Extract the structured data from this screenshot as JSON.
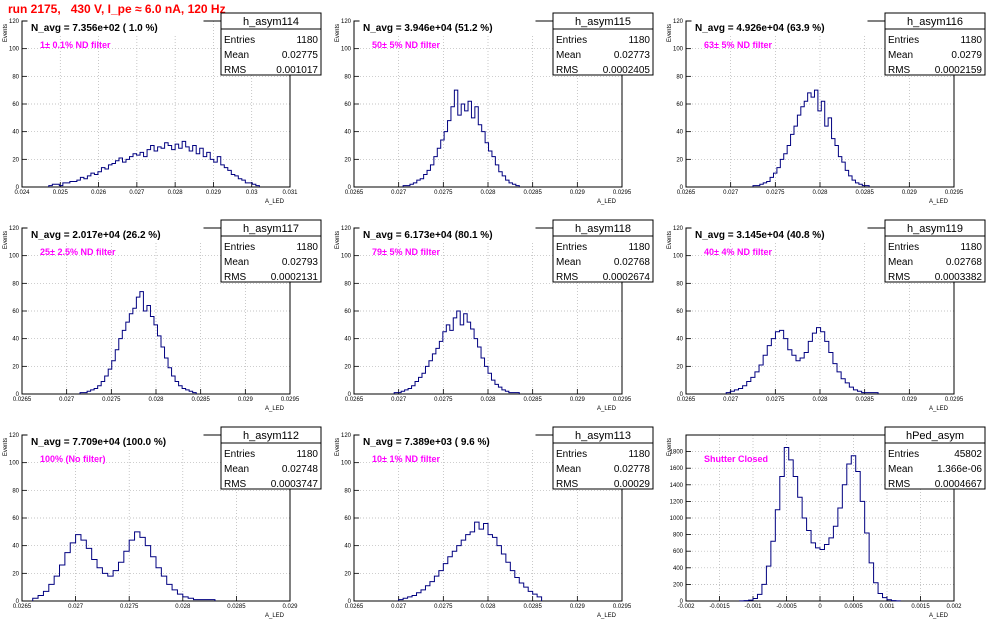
{
  "header": {
    "title": "run 2175,   430 V, I_pe ≈ 6.0 nA, 120 Hz"
  },
  "colors": {
    "title": "#ff0000",
    "histogram": "#000080",
    "filter_label": "#ff00ff",
    "grid": "#b0b0b0"
  },
  "chart_data": [
    {
      "type": "bar",
      "stats": {
        "name": "h_asym114",
        "entries": "1180",
        "mean": "0.02775",
        "rms": "0.001017"
      },
      "navg": "N_avg = 7.356e+02 ( 1.0 %)",
      "filter": "1± 0.1% ND filter",
      "ylabel": "Events",
      "xlabel": "A_LED",
      "xlim": [
        0.024,
        0.031
      ],
      "ylim": [
        0,
        120
      ],
      "xticks": [
        "0.024",
        "0.025",
        "0.026",
        "0.027",
        "0.028",
        "0.029",
        "0.03",
        "0.031"
      ],
      "yticks": [
        "0",
        "20",
        "40",
        "60",
        "80",
        "100",
        "120"
      ],
      "grid": true,
      "bins": {
        "x0": 0.0247,
        "x1": 0.0302,
        "values": [
          1,
          2,
          2,
          1,
          3,
          3,
          4,
          4,
          5,
          7,
          6,
          8,
          10,
          9,
          11,
          14,
          13,
          16,
          17,
          19,
          21,
          18,
          20,
          22,
          24,
          23,
          25,
          22,
          27,
          30,
          26,
          29,
          28,
          32,
          30,
          27,
          31,
          28,
          33,
          29,
          26,
          30,
          24,
          28,
          22,
          25,
          20,
          18,
          22,
          16,
          14,
          12,
          9,
          8,
          6,
          5,
          3,
          3,
          2,
          1
        ]
      }
    },
    {
      "type": "bar",
      "stats": {
        "name": "h_asym115",
        "entries": "1180",
        "mean": "0.02773",
        "rms": "0.0002405"
      },
      "navg": "N_avg = 3.946e+04 (51.2 %)",
      "filter": "50± 5% ND filter",
      "ylabel": "Events",
      "xlabel": "A_LED",
      "xlim": [
        0.0265,
        0.0295
      ],
      "ylim": [
        0,
        120
      ],
      "xticks": [
        "0.0265",
        "0.027",
        "0.0275",
        "0.028",
        "0.0285",
        "0.029",
        "0.0295"
      ],
      "yticks": [
        "0",
        "20",
        "40",
        "60",
        "80",
        "100",
        "120"
      ],
      "grid": true,
      "bins": {
        "x0": 0.02705,
        "x1": 0.02835,
        "values": [
          1,
          1,
          2,
          3,
          5,
          6,
          9,
          12,
          16,
          22,
          28,
          34,
          40,
          48,
          58,
          70,
          52,
          60,
          55,
          62,
          50,
          58,
          45,
          40,
          32,
          26,
          22,
          16,
          11,
          8,
          5,
          3,
          2,
          1
        ]
      }
    },
    {
      "type": "bar",
      "stats": {
        "name": "h_asym116",
        "entries": "1180",
        "mean": "0.0279",
        "rms": "0.0002159"
      },
      "navg": "N_avg = 4.926e+04 (63.9 %)",
      "filter": "63± 5% ND filter",
      "ylabel": "Events",
      "xlabel": "A_LED",
      "xlim": [
        0.0265,
        0.0295
      ],
      "ylim": [
        0,
        120
      ],
      "xticks": [
        "0.0265",
        "0.027",
        "0.0275",
        "0.028",
        "0.0285",
        "0.029",
        "0.0295"
      ],
      "yticks": [
        "0",
        "20",
        "40",
        "60",
        "80",
        "100",
        "120"
      ],
      "grid": true,
      "bins": {
        "x0": 0.02725,
        "x1": 0.02855,
        "values": [
          1,
          1,
          2,
          3,
          4,
          7,
          10,
          14,
          20,
          24,
          30,
          38,
          44,
          52,
          58,
          62,
          68,
          65,
          70,
          55,
          62,
          44,
          50,
          35,
          30,
          22,
          18,
          12,
          8,
          5,
          3,
          2,
          1,
          1
        ]
      }
    },
    {
      "type": "bar",
      "stats": {
        "name": "h_asym117",
        "entries": "1180",
        "mean": "0.02793",
        "rms": "0.0002131"
      },
      "navg": "N_avg = 2.017e+04 (26.2 %)",
      "filter": "25± 2.5% ND filter",
      "ylabel": "Events",
      "xlabel": "A_LED",
      "xlim": [
        0.0265,
        0.0295
      ],
      "ylim": [
        0,
        120
      ],
      "xticks": [
        "0.0265",
        "0.027",
        "0.0275",
        "0.028",
        "0.0285",
        "0.029",
        "0.0295"
      ],
      "yticks": [
        "0",
        "20",
        "40",
        "60",
        "80",
        "100",
        "120"
      ],
      "grid": true,
      "bins": {
        "x0": 0.02715,
        "x1": 0.02845,
        "values": [
          1,
          1,
          2,
          3,
          4,
          6,
          9,
          13,
          18,
          24,
          32,
          40,
          46,
          52,
          58,
          62,
          70,
          74,
          60,
          64,
          56,
          50,
          42,
          34,
          26,
          19,
          13,
          9,
          6,
          4,
          3,
          2,
          1
        ]
      }
    },
    {
      "type": "bar",
      "stats": {
        "name": "h_asym118",
        "entries": "1180",
        "mean": "0.02768",
        "rms": "0.0002674"
      },
      "navg": "N_avg = 6.173e+04 (80.1 %)",
      "filter": "79± 5% ND filter",
      "ylabel": "Events",
      "xlabel": "A_LED",
      "xlim": [
        0.0265,
        0.0295
      ],
      "ylim": [
        0,
        120
      ],
      "xticks": [
        "0.0265",
        "0.027",
        "0.0275",
        "0.028",
        "0.0285",
        "0.029",
        "0.0295"
      ],
      "yticks": [
        "0",
        "20",
        "40",
        "60",
        "80",
        "100",
        "120"
      ],
      "grid": true,
      "bins": {
        "x0": 0.02695,
        "x1": 0.02835,
        "values": [
          1,
          1,
          2,
          3,
          4,
          6,
          9,
          12,
          15,
          20,
          24,
          29,
          33,
          38,
          45,
          50,
          46,
          55,
          60,
          50,
          58,
          52,
          47,
          40,
          34,
          26,
          20,
          15,
          10,
          7,
          5,
          3,
          2,
          1,
          1,
          1
        ]
      }
    },
    {
      "type": "bar",
      "stats": {
        "name": "h_asym119",
        "entries": "1180",
        "mean": "0.02768",
        "rms": "0.0003382"
      },
      "navg": "N_avg = 3.145e+04 (40.8 %)",
      "filter": "40± 4% ND filter",
      "ylabel": "Events",
      "xlabel": "A_LED",
      "xlim": [
        0.0265,
        0.0295
      ],
      "ylim": [
        0,
        120
      ],
      "xticks": [
        "0.0265",
        "0.027",
        "0.0275",
        "0.028",
        "0.0285",
        "0.029",
        "0.0295"
      ],
      "yticks": [
        "0",
        "20",
        "40",
        "60",
        "80",
        "100",
        "120"
      ],
      "grid": true,
      "bins": {
        "x0": 0.02695,
        "x1": 0.02865,
        "values": [
          1,
          2,
          3,
          4,
          6,
          9,
          12,
          16,
          21,
          28,
          35,
          40,
          45,
          46,
          40,
          32,
          28,
          24,
          26,
          30,
          38,
          44,
          48,
          45,
          38,
          30,
          22,
          16,
          11,
          8,
          5,
          3,
          2,
          1,
          1,
          1,
          1
        ]
      }
    },
    {
      "type": "bar",
      "stats": {
        "name": "h_asym112",
        "entries": "1180",
        "mean": "0.02748",
        "rms": "0.0003747"
      },
      "navg": "N_avg = 7.709e+04 (100.0 %)",
      "filter": "100% (No filter)",
      "ylabel": "Events",
      "xlabel": "A_LED",
      "xlim": [
        0.0265,
        0.029
      ],
      "ylim": [
        0,
        120
      ],
      "xticks": [
        "0.0265",
        "0.027",
        "0.0275",
        "0.028",
        "0.0285",
        "0.029"
      ],
      "yticks": [
        "0",
        "20",
        "40",
        "60",
        "80",
        "100",
        "120"
      ],
      "grid": true,
      "bins": {
        "x0": 0.0266,
        "x1": 0.0283,
        "values": [
          2,
          4,
          7,
          12,
          18,
          26,
          35,
          42,
          48,
          44,
          38,
          30,
          24,
          20,
          18,
          22,
          28,
          36,
          44,
          50,
          46,
          40,
          32,
          24,
          18,
          12,
          8,
          5,
          3,
          2,
          1,
          1,
          1,
          1
        ]
      }
    },
    {
      "type": "bar",
      "stats": {
        "name": "h_asym113",
        "entries": "1180",
        "mean": "0.02778",
        "rms": "0.00029"
      },
      "navg": "N_avg = 7.389e+03 ( 9.6 %)",
      "filter": "10± 1% ND filter",
      "ylabel": "Events",
      "xlabel": "A_LED",
      "xlim": [
        0.0265,
        0.0295
      ],
      "ylim": [
        0,
        120
      ],
      "xticks": [
        "0.0265",
        "0.027",
        "0.0275",
        "0.028",
        "0.0285",
        "0.029",
        "0.0295"
      ],
      "yticks": [
        "0",
        "20",
        "40",
        "60",
        "80",
        "100",
        "120"
      ],
      "grid": true,
      "bins": {
        "x0": 0.027,
        "x1": 0.0286,
        "values": [
          1,
          2,
          3,
          4,
          6,
          8,
          11,
          14,
          18,
          22,
          27,
          32,
          36,
          40,
          44,
          48,
          50,
          57,
          52,
          56,
          48,
          46,
          40,
          34,
          28,
          22,
          17,
          13,
          10,
          7,
          5,
          3
        ]
      }
    },
    {
      "type": "bar",
      "stats": {
        "name": "hPed_asym",
        "entries": "45802",
        "mean": "1.366e-06",
        "rms": "0.0004667"
      },
      "navg": "",
      "filter": "Shutter Closed",
      "ylabel": "Events",
      "xlabel": "A_LED",
      "xlim": [
        -0.002,
        0.002
      ],
      "ylim": [
        0,
        2000
      ],
      "xticks": [
        "-0.002",
        "-0.0015",
        "-0.001",
        "-0.0005",
        "0",
        "0.0005",
        "0.001",
        "0.0015",
        "0.002"
      ],
      "yticks": [
        "0",
        "200",
        "400",
        "600",
        "800",
        "1000",
        "1200",
        "1400",
        "1600",
        "1800"
      ],
      "grid": true,
      "bins": {
        "x0": -0.0012,
        "x1": 0.0012,
        "values": [
          2,
          5,
          10,
          30,
          80,
          200,
          420,
          720,
          1100,
          1500,
          1850,
          1700,
          1500,
          1250,
          1000,
          850,
          700,
          640,
          620,
          680,
          760,
          900,
          1120,
          1400,
          1650,
          1750,
          1560,
          1200,
          820,
          460,
          220,
          90,
          40,
          15,
          5,
          2
        ]
      }
    }
  ]
}
